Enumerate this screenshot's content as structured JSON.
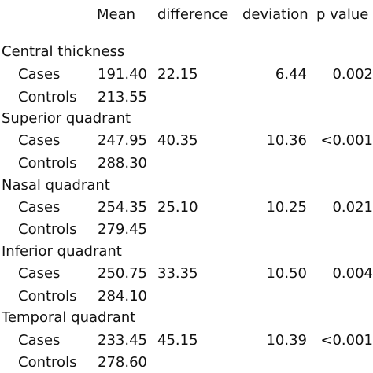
{
  "header": {
    "mean": "Mean",
    "difference": "difference",
    "deviation": "deviation",
    "p_value": "p value"
  },
  "groups": [
    {
      "title": "Central thickness",
      "rows": [
        {
          "label": "Cases",
          "mean": "191.40",
          "difference": "22.15",
          "deviation": "6.44",
          "p_value": "0.002"
        },
        {
          "label": "Controls",
          "mean": "213.55",
          "difference": "",
          "deviation": "",
          "p_value": ""
        }
      ]
    },
    {
      "title": "Superior quadrant",
      "rows": [
        {
          "label": "Cases",
          "mean": "247.95",
          "difference": "40.35",
          "deviation": "10.36",
          "p_value": "<0.001"
        },
        {
          "label": "Controls",
          "mean": "288.30",
          "difference": "",
          "deviation": "",
          "p_value": ""
        }
      ]
    },
    {
      "title": "Nasal quadrant",
      "rows": [
        {
          "label": "Cases",
          "mean": "254.35",
          "difference": "25.10",
          "deviation": "10.25",
          "p_value": "0.021"
        },
        {
          "label": "Controls",
          "mean": "279.45",
          "difference": "",
          "deviation": "",
          "p_value": ""
        }
      ]
    },
    {
      "title": "Inferior quadrant",
      "rows": [
        {
          "label": "Cases",
          "mean": "250.75",
          "difference": "33.35",
          "deviation": "10.50",
          "p_value": "0.004"
        },
        {
          "label": "Controls",
          "mean": "284.10",
          "difference": "",
          "deviation": "",
          "p_value": ""
        }
      ]
    },
    {
      "title": "Temporal quadrant",
      "rows": [
        {
          "label": "Cases",
          "mean": "233.45",
          "difference": "45.15",
          "deviation": "10.39",
          "p_value": "<0.001"
        },
        {
          "label": "Controls",
          "mean": "278.60",
          "difference": "",
          "deviation": "",
          "p_value": ""
        }
      ]
    }
  ]
}
